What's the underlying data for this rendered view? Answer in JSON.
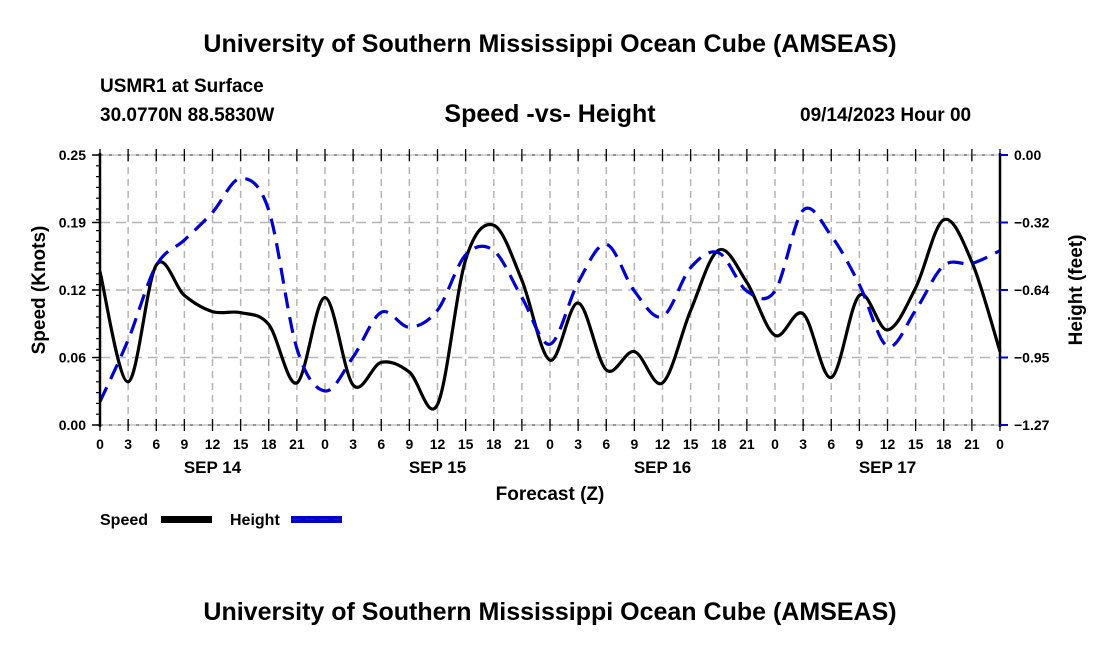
{
  "header": {
    "main_title": "University of Southern Mississippi Ocean Cube (AMSEAS)",
    "station": "USMR1 at Surface",
    "coords": "30.0770N  88.5830W",
    "subtitle": "Speed -vs- Height",
    "datetime": "09/14/2023 Hour 00"
  },
  "footer": {
    "bottom_title": "University of Southern Mississippi Ocean Cube (AMSEAS)"
  },
  "chart_data": {
    "type": "line",
    "title": "Speed -vs- Height",
    "xlabel": "Forecast (Z)",
    "ylabel": "Speed (Knots)",
    "y2label": "Height (feet)",
    "x_tick_labels": [
      "0",
      "3",
      "6",
      "9",
      "12",
      "15",
      "18",
      "21",
      "0",
      "3",
      "6",
      "9",
      "12",
      "15",
      "18",
      "21",
      "0",
      "3",
      "6",
      "9",
      "12",
      "15",
      "18",
      "21",
      "0",
      "3",
      "6",
      "9",
      "12",
      "15",
      "18",
      "21",
      "0"
    ],
    "x_day_labels": [
      {
        "label": "SEP 14",
        "at_index": 4
      },
      {
        "label": "SEP 15",
        "at_index": 12
      },
      {
        "label": "SEP 16",
        "at_index": 20
      },
      {
        "label": "SEP 17",
        "at_index": 28
      }
    ],
    "x_hours": [
      0,
      3,
      6,
      9,
      12,
      15,
      18,
      21,
      24,
      27,
      30,
      33,
      36,
      39,
      42,
      45,
      48,
      51,
      54,
      57,
      60,
      63,
      66,
      69,
      72,
      75,
      78,
      81,
      84,
      87,
      90,
      93,
      96
    ],
    "ylim": [
      0,
      0.25
    ],
    "y_ticks": [
      "0.00",
      "0.06",
      "0.12",
      "0.19",
      "0.25"
    ],
    "y_tick_values": [
      0,
      0.0625,
      0.125,
      0.1875,
      0.25
    ],
    "y2lim": [
      -1.27,
      0
    ],
    "y2_ticks": [
      "0.00",
      "-0.32",
      "-0.64",
      "-0.95",
      "-1.27"
    ],
    "y2_tick_values": [
      0,
      -0.3175,
      -0.635,
      -0.9525,
      -1.27
    ],
    "grid": true,
    "legend_position": "bottom-left",
    "series": [
      {
        "name": "Speed",
        "axis": "left",
        "color": "#000000",
        "style": "solid",
        "values": [
          0.142,
          0.04,
          0.148,
          0.12,
          0.105,
          0.104,
          0.093,
          0.039,
          0.118,
          0.037,
          0.058,
          0.049,
          0.019,
          0.153,
          0.185,
          0.134,
          0.06,
          0.113,
          0.051,
          0.068,
          0.039,
          0.106,
          0.162,
          0.132,
          0.083,
          0.103,
          0.044,
          0.12,
          0.088,
          0.127,
          0.19,
          0.151,
          0.068
        ]
      },
      {
        "name": "Height",
        "axis": "right",
        "color": "#0000cc",
        "style": "dashed",
        "values": [
          -1.16,
          -0.87,
          -0.52,
          -0.4,
          -0.27,
          -0.11,
          -0.26,
          -0.91,
          -1.11,
          -0.95,
          -0.74,
          -0.81,
          -0.73,
          -0.47,
          -0.45,
          -0.67,
          -0.89,
          -0.6,
          -0.42,
          -0.64,
          -0.76,
          -0.53,
          -0.46,
          -0.64,
          -0.64,
          -0.26,
          -0.38,
          -0.61,
          -0.9,
          -0.73,
          -0.52,
          -0.51,
          -0.45
        ]
      }
    ]
  }
}
